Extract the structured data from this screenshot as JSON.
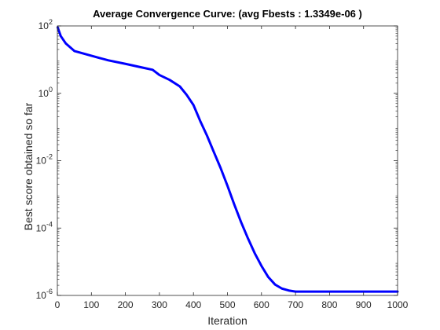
{
  "chart_data": {
    "type": "line",
    "title": "Average Convergence Curve: (avg Fbests : 1.3349e-06 )",
    "xlabel": "Iteration",
    "ylabel": "Best score obtained so far",
    "xlim": [
      0,
      1000
    ],
    "ylim": [
      1e-06,
      100
    ],
    "yscale": "log",
    "grid": false,
    "x_ticks": [
      0,
      100,
      200,
      300,
      400,
      500,
      600,
      700,
      800,
      900,
      1000
    ],
    "y_ticks": [
      {
        "base": "10",
        "exp": "-6",
        "value": 1e-06
      },
      {
        "base": "10",
        "exp": "-4",
        "value": 0.0001
      },
      {
        "base": "10",
        "exp": "-2",
        "value": 0.01
      },
      {
        "base": "10",
        "exp": "0",
        "value": 1
      },
      {
        "base": "10",
        "exp": "2",
        "value": 100
      }
    ],
    "line_color": "#0000ff",
    "series": [
      {
        "x": [
          1,
          10,
          25,
          50,
          100,
          150,
          200,
          250,
          280,
          300,
          330,
          360,
          380,
          400,
          420,
          440,
          460,
          480,
          500,
          520,
          540,
          560,
          580,
          600,
          620,
          640,
          660,
          680,
          700,
          720,
          750,
          800,
          900,
          1000
        ],
        "y": [
          90,
          50,
          30,
          18,
          13,
          9.5,
          7.5,
          5.8,
          5.0,
          3.5,
          2.5,
          1.6,
          0.9,
          0.45,
          0.15,
          0.055,
          0.018,
          0.006,
          0.0018,
          0.0005,
          0.00015,
          5e-05,
          1.8e-05,
          7.5e-06,
          3.5e-06,
          2.1e-06,
          1.6e-06,
          1.4e-06,
          1.3e-06,
          1.3e-06,
          1.3e-06,
          1.3e-06,
          1.3e-06,
          1.3e-06
        ]
      }
    ]
  }
}
